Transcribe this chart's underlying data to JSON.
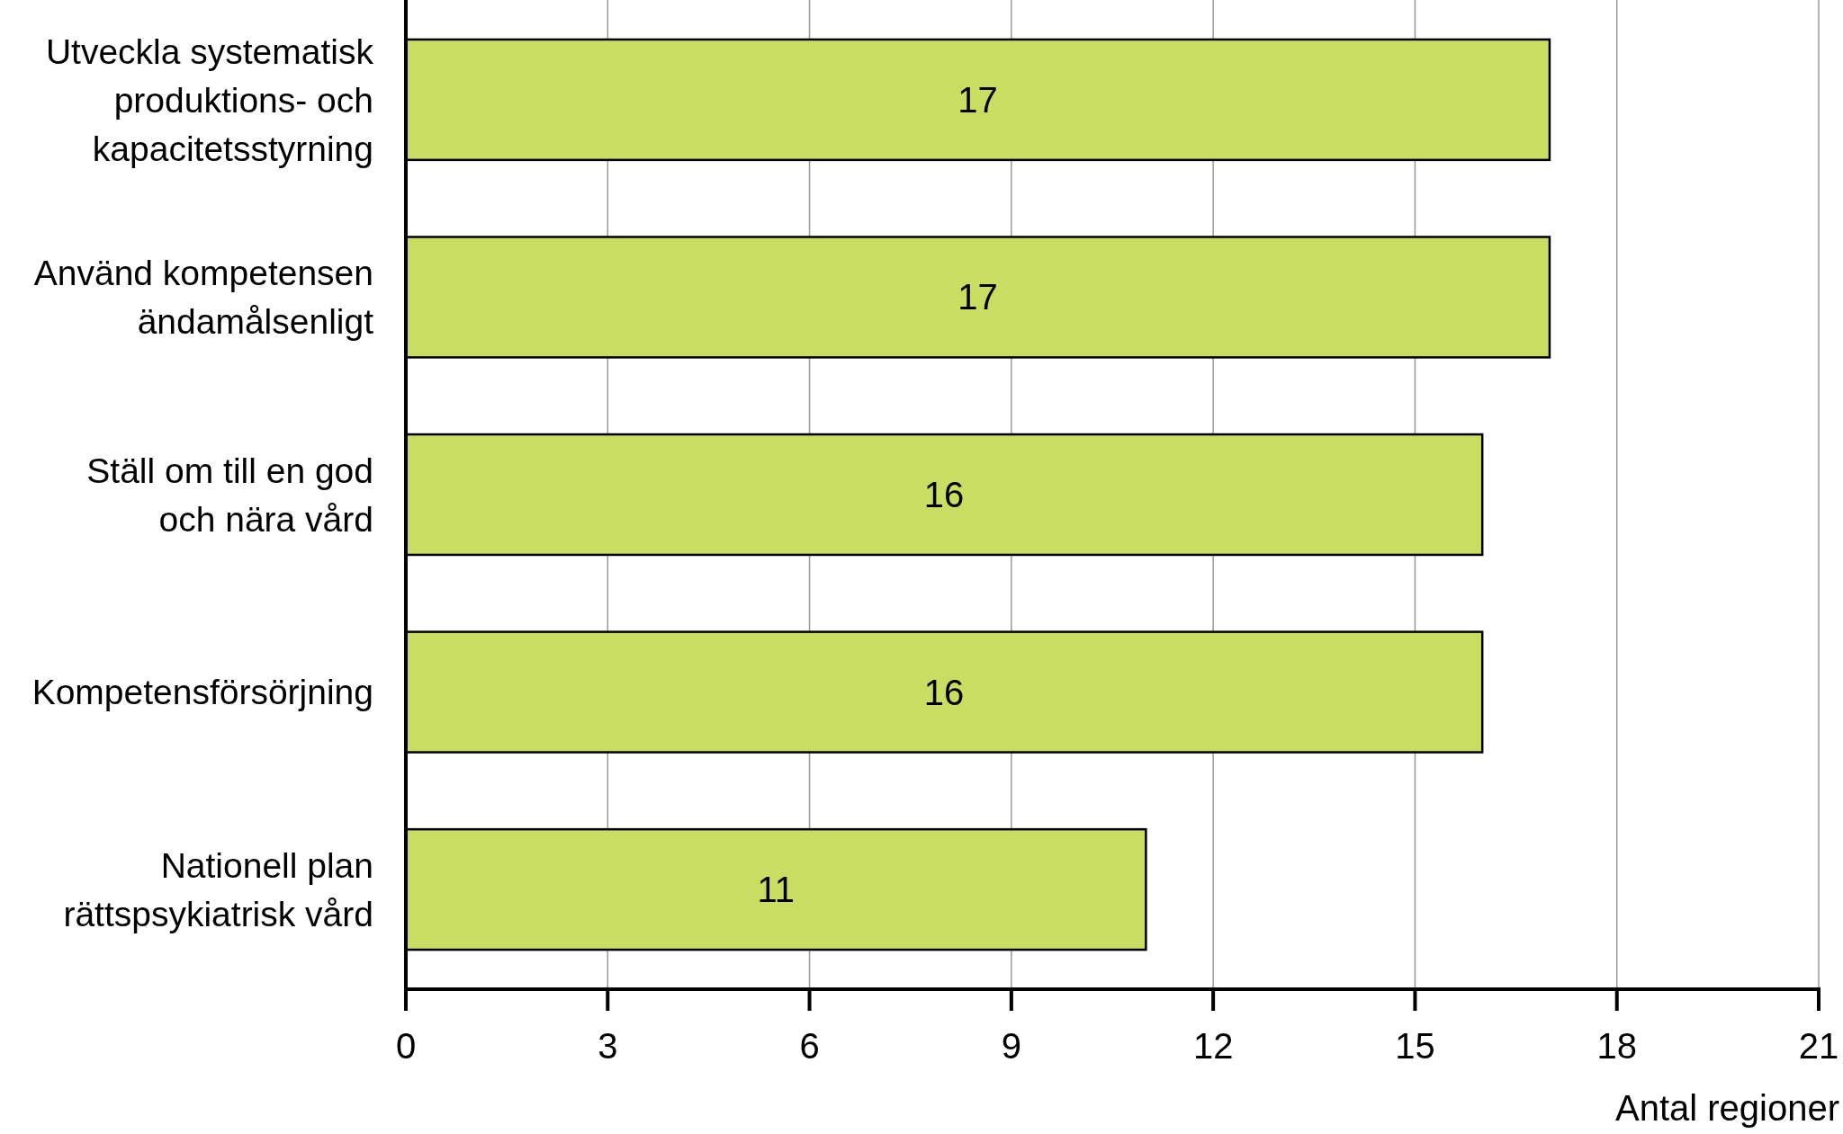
{
  "chart_data": {
    "type": "bar",
    "orientation": "horizontal",
    "categories": [
      "Utveckla systematisk\nproduktions- och\nkapacitetsstyrning",
      "Använd kompetensen\nändamålsenligt",
      "Ställ om till en god\noch nära vård",
      "Kompetensförsörjning",
      "Nationell plan\nrättspsykiatrisk vård"
    ],
    "values": [
      17,
      17,
      16,
      16,
      11
    ],
    "color": "#cadd63",
    "xlim": [
      0,
      21
    ],
    "xticks": [
      0,
      3,
      6,
      9,
      12,
      15,
      18,
      21
    ],
    "xlabel": "Antal regioner",
    "grid": "x",
    "data_labels": true
  }
}
